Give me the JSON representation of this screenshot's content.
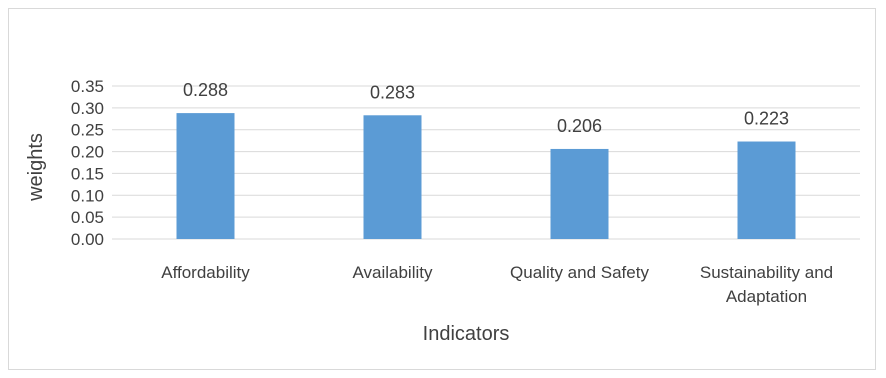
{
  "chart_data": {
    "type": "bar",
    "categories": [
      [
        "Affordability"
      ],
      [
        "Availability"
      ],
      [
        "Quality and Safety"
      ],
      [
        "Sustainability and",
        "Adaptation"
      ]
    ],
    "values": [
      0.288,
      0.283,
      0.206,
      0.223
    ],
    "data_labels": [
      "0.288",
      "0.283",
      "0.206",
      "0.223"
    ],
    "title": "",
    "xlabel": "Indicators",
    "ylabel": "weights",
    "ylim": [
      0,
      0.35
    ],
    "yticks": [
      "0.00",
      "0.05",
      "0.10",
      "0.15",
      "0.20",
      "0.25",
      "0.30",
      "0.35"
    ],
    "grid": true,
    "legend": "none",
    "bar_color": "#5b9bd5",
    "grid_color": "#d9d9d9"
  }
}
